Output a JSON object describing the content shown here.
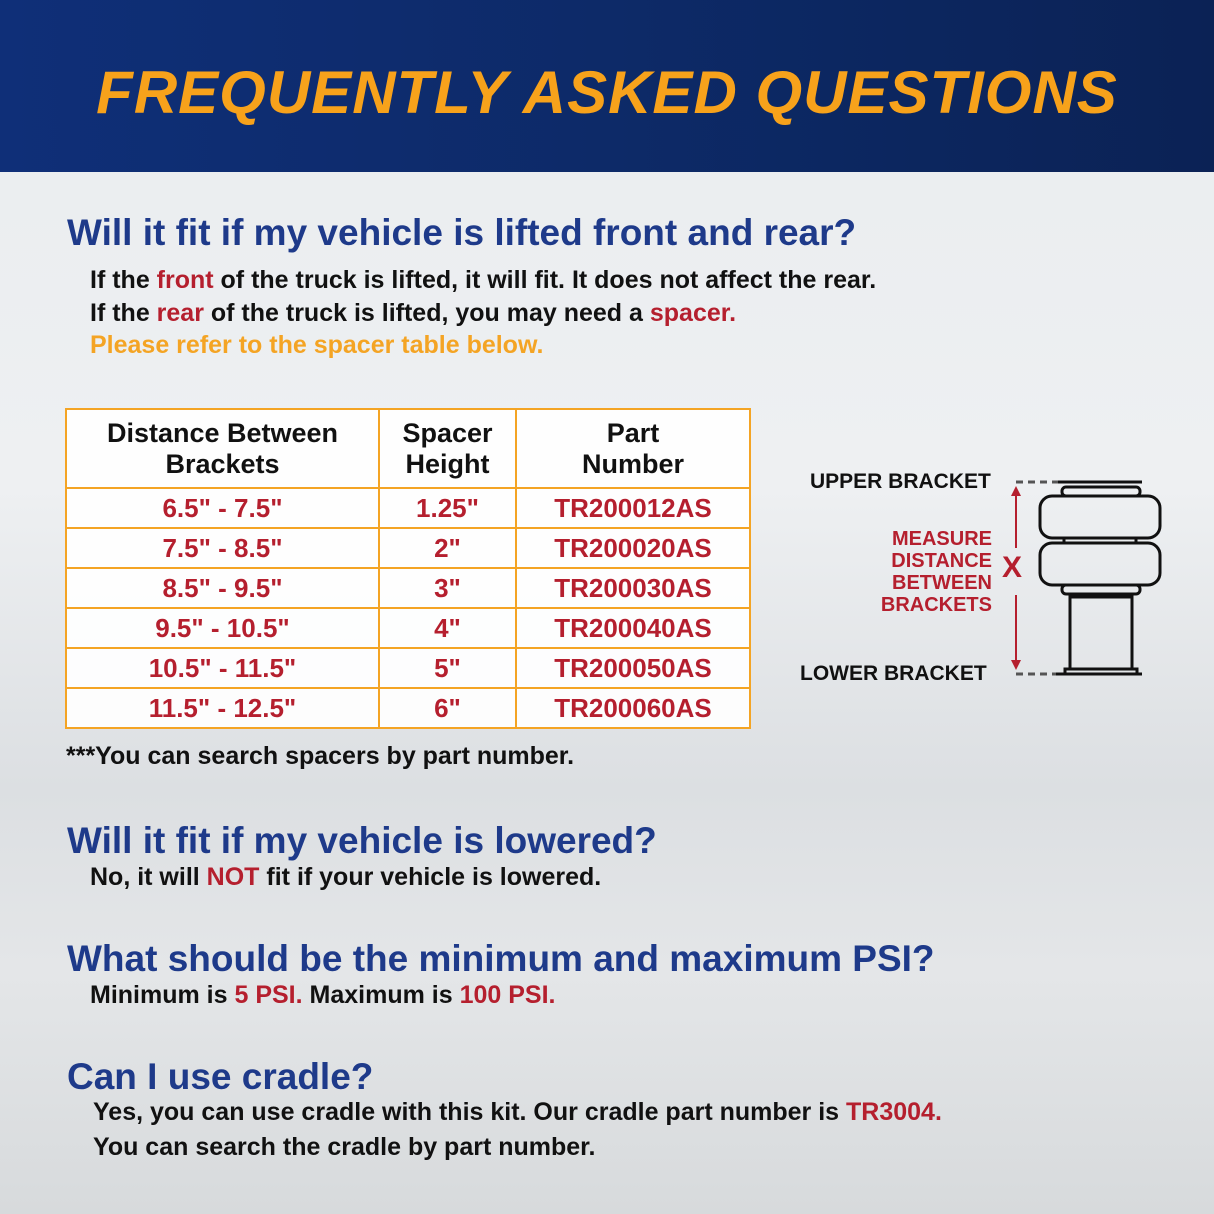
{
  "title": "FREQUENTLY ASKED QUESTIONS",
  "q1": {
    "heading": "Will it fit if my vehicle is lifted front and rear?",
    "line1": {
      "a": "If the ",
      "b": "front",
      "c": " of the truck is lifted, it will fit. It does not affect the rear."
    },
    "line2": {
      "a": "If the ",
      "b": "rear",
      "c": " of the truck is lifted, you may need a ",
      "d": "spacer."
    },
    "line3": "Please refer to the spacer table below."
  },
  "table": {
    "headers": [
      [
        "Distance Between",
        "Brackets"
      ],
      [
        "Spacer",
        "Height"
      ],
      [
        "Part",
        "Number"
      ]
    ],
    "rows": [
      [
        "6.5\" - 7.5\"",
        "1.25\"",
        "TR200012AS"
      ],
      [
        "7.5\" - 8.5\"",
        "2\"",
        "TR200020AS"
      ],
      [
        "8.5\" - 9.5\"",
        "3\"",
        "TR200030AS"
      ],
      [
        "9.5\" - 10.5\"",
        "4\"",
        "TR200040AS"
      ],
      [
        "10.5\" - 11.5\"",
        "5\"",
        "TR200050AS"
      ],
      [
        "11.5\" - 12.5\"",
        "6\"",
        "TR200060AS"
      ]
    ],
    "note": "***You can search spacers by part number."
  },
  "diagram": {
    "upper": "UPPER BRACKET",
    "lower": "LOWER BRACKET",
    "measure": [
      "MEASURE",
      "DISTANCE",
      "BETWEEN",
      "BRACKETS"
    ],
    "x": "X"
  },
  "q2": {
    "heading": "Will it fit if my vehicle is lowered?",
    "a": "No, it will ",
    "b": "NOT",
    "c": " fit if your vehicle is lowered."
  },
  "q3": {
    "heading": "What should be the minimum and maximum PSI?",
    "a": "Minimum is ",
    "b": "5 PSI.",
    "c": " Maximum is ",
    "d": "100 PSI."
  },
  "q4": {
    "heading": "Can I use cradle?",
    "a": "Yes, you can use cradle with this kit. Our cradle part number is ",
    "b": "TR3004.",
    "line2": "You can search the cradle by part number."
  },
  "colors": {
    "navy": "#0f2f78",
    "orange": "#f7a21b",
    "heading": "#1e3a8a",
    "red": "#b51f2e"
  }
}
